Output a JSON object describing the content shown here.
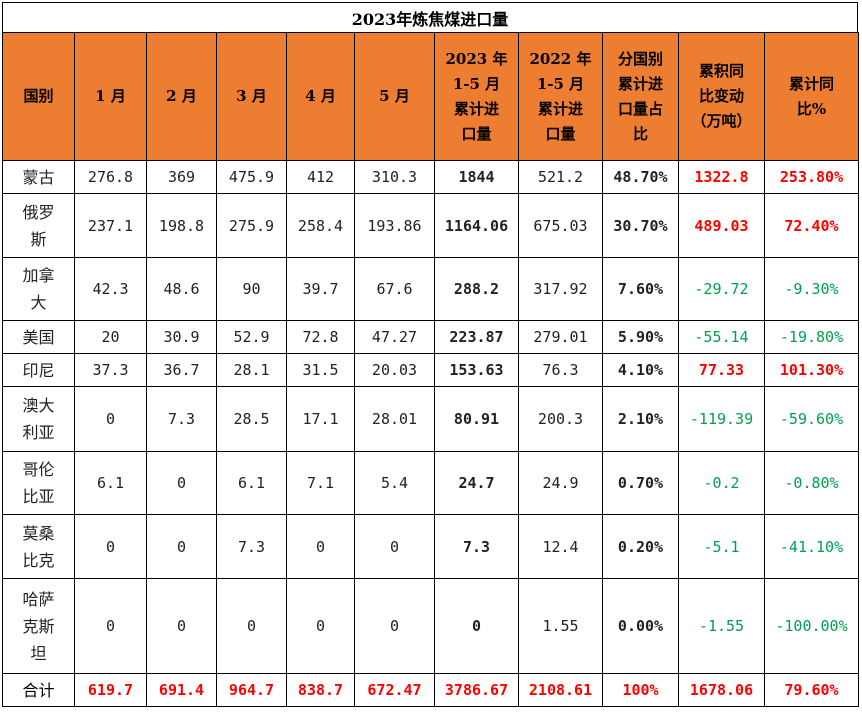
{
  "title": "2023年炼焦煤进口量",
  "headers": [
    "国别",
    "1月",
    "2月",
    "3月",
    "4月",
    "5月",
    "2023年1-5月累计进口量",
    "2022年1-5月累计进口量",
    "分国别累计进口量占比",
    "累积同比变动（万吨）",
    "累计同比%"
  ],
  "headers_display": [
    "国别",
    "1 月",
    "2 月",
    "3 月",
    "4 月",
    "5 月",
    "2023 年\n1-5 月\n累计进\n口量",
    "2022 年\n1-5 月\n累计进\n口量",
    "分国别\n累计进\n口量占\n比",
    "累积同\n比变动\n（万吨）",
    "累计同\n比%"
  ],
  "rows": [
    {
      "country": "蒙古",
      "m1": "276.8",
      "m2": "369",
      "m3": "475.9",
      "m4": "412",
      "m5": "310.3",
      "y2023": "1844",
      "y2022": "521.2",
      "share": "48.70%",
      "change": "1322.8",
      "yoy": "253.80%",
      "dir": "up"
    },
    {
      "country": "俄罗斯",
      "m1": "237.1",
      "m2": "198.8",
      "m3": "275.9",
      "m4": "258.4",
      "m5": "193.86",
      "y2023": "1164.06",
      "y2022": "675.03",
      "share": "30.70%",
      "change": "489.03",
      "yoy": "72.40%",
      "dir": "up"
    },
    {
      "country": "加拿大",
      "m1": "42.3",
      "m2": "48.6",
      "m3": "90",
      "m4": "39.7",
      "m5": "67.6",
      "y2023": "288.2",
      "y2022": "317.92",
      "share": "7.60%",
      "change": "-29.72",
      "yoy": "-9.30%",
      "dir": "down"
    },
    {
      "country": "美国",
      "m1": "20",
      "m2": "30.9",
      "m3": "52.9",
      "m4": "72.8",
      "m5": "47.27",
      "y2023": "223.87",
      "y2022": "279.01",
      "share": "5.90%",
      "change": "-55.14",
      "yoy": "-19.80%",
      "dir": "down"
    },
    {
      "country": "印尼",
      "m1": "37.3",
      "m2": "36.7",
      "m3": "28.1",
      "m4": "31.5",
      "m5": "20.03",
      "y2023": "153.63",
      "y2022": "76.3",
      "share": "4.10%",
      "change": "77.33",
      "yoy": "101.30%",
      "dir": "up"
    },
    {
      "country": "澳大利亚",
      "m1": "0",
      "m2": "7.3",
      "m3": "28.5",
      "m4": "17.1",
      "m5": "28.01",
      "y2023": "80.91",
      "y2022": "200.3",
      "share": "2.10%",
      "change": "-119.39",
      "yoy": "-59.60%",
      "dir": "down"
    },
    {
      "country": "哥伦比亚",
      "m1": "6.1",
      "m2": "0",
      "m3": "6.1",
      "m4": "7.1",
      "m5": "5.4",
      "y2023": "24.7",
      "y2022": "24.9",
      "share": "0.70%",
      "change": "-0.2",
      "yoy": "-0.80%",
      "dir": "down"
    },
    {
      "country": "莫桑比克",
      "m1": "0",
      "m2": "0",
      "m3": "7.3",
      "m4": "0",
      "m5": "0",
      "y2023": "7.3",
      "y2022": "12.4",
      "share": "0.20%",
      "change": "-5.1",
      "yoy": "-41.10%",
      "dir": "down"
    },
    {
      "country": "哈萨克斯坦",
      "m1": "0",
      "m2": "0",
      "m3": "0",
      "m4": "0",
      "m5": "0",
      "y2023": "0",
      "y2022": "1.55",
      "share": "0.00%",
      "change": "-1.55",
      "yoy": "-100.00%",
      "dir": "down"
    }
  ],
  "rows_country_display": [
    "蒙古",
    "俄罗\n斯",
    "加拿\n大",
    "美国",
    "印尼",
    "澳大\n利亚",
    "哥伦\n比亚",
    "莫桑\n比克",
    "哈萨\n克斯\n坦"
  ],
  "total": {
    "country": "合计",
    "m1": "619.7",
    "m2": "691.4",
    "m3": "964.7",
    "m4": "838.7",
    "m5": "672.47",
    "y2023": "3786.67",
    "y2022": "2108.61",
    "share": "100%",
    "change": "1678.06",
    "yoy": "79.60%"
  },
  "colors": {
    "header_bg": "#ED7D31",
    "increase": "#FF0000",
    "decrease": "#00A050"
  }
}
